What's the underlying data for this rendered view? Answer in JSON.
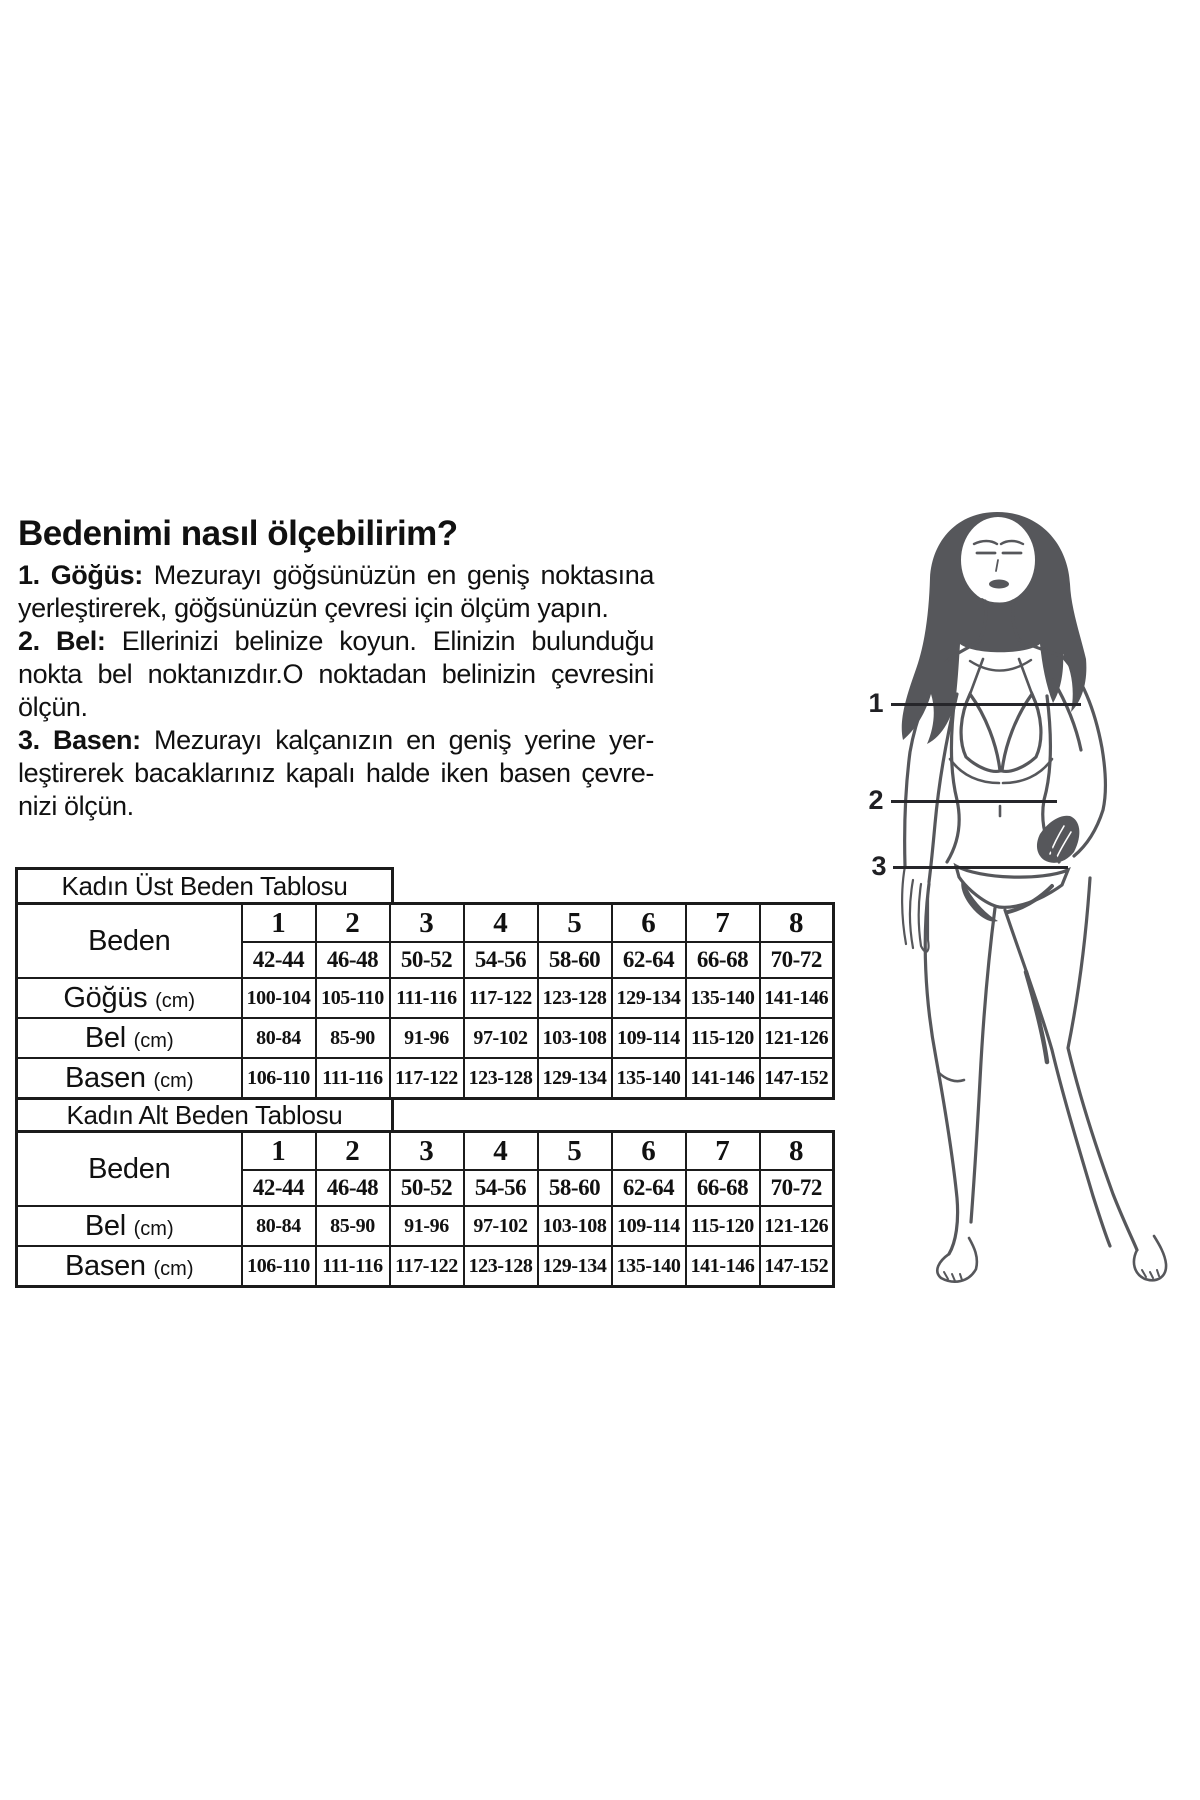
{
  "title": "Bedenimi nasıl ölçebilirim?",
  "instructions": [
    {
      "bold": "1. Göğüs:",
      "lines": [
        "Mezurayı göğsünüzün en geniş noktasına",
        "yerleştirerek, göğsünüzün çevresi için ölçüm yapın."
      ]
    },
    {
      "bold": "2. Bel:",
      "lines": [
        "Ellerinizi belinize koyun. Elinizin bulunduğu",
        "nokta bel noktanızdır.O noktadan belinizin çevresini",
        "ölçün."
      ]
    },
    {
      "bold": "3. Basen:",
      "lines": [
        "Mezurayı kalçanızın en geniş yerine yer-",
        "leştirerek bacaklarınız kapalı halde iken basen çevre-",
        "nizi ölçün."
      ]
    }
  ],
  "figure": {
    "labels": [
      "1",
      "2",
      "3"
    ],
    "line_color": "#26262a",
    "art_color": "#56575b"
  },
  "size_tables": [
    {
      "title": "Kadın Üst Beden Tablosu",
      "beden_label": "Beden",
      "sizes": [
        "1",
        "2",
        "3",
        "4",
        "5",
        "6",
        "7",
        "8"
      ],
      "size_ranges": [
        "42-44",
        "46-48",
        "50-52",
        "54-56",
        "58-60",
        "62-64",
        "66-68",
        "70-72"
      ],
      "rows": [
        {
          "label": "Göğüs",
          "unit": "(cm)",
          "values": [
            "100-104",
            "105-110",
            "111-116",
            "117-122",
            "123-128",
            "129-134",
            "135-140",
            "141-146"
          ]
        },
        {
          "label": "Bel",
          "unit": "(cm)",
          "values": [
            "80-84",
            "85-90",
            "91-96",
            "97-102",
            "103-108",
            "109-114",
            "115-120",
            "121-126"
          ]
        },
        {
          "label": "Basen",
          "unit": "(cm)",
          "values": [
            "106-110",
            "111-116",
            "117-122",
            "123-128",
            "129-134",
            "135-140",
            "141-146",
            "147-152"
          ]
        }
      ]
    },
    {
      "title": "Kadın Alt Beden Tablosu",
      "beden_label": "Beden",
      "sizes": [
        "1",
        "2",
        "3",
        "4",
        "5",
        "6",
        "7",
        "8"
      ],
      "size_ranges": [
        "42-44",
        "46-48",
        "50-52",
        "54-56",
        "58-60",
        "62-64",
        "66-68",
        "70-72"
      ],
      "rows": [
        {
          "label": "Bel",
          "unit": "(cm)",
          "values": [
            "80-84",
            "85-90",
            "91-96",
            "97-102",
            "103-108",
            "109-114",
            "115-120",
            "121-126"
          ]
        },
        {
          "label": "Basen",
          "unit": "(cm)",
          "values": [
            "106-110",
            "111-116",
            "117-122",
            "123-128",
            "129-134",
            "135-140",
            "141-146",
            "147-152"
          ]
        }
      ]
    }
  ]
}
